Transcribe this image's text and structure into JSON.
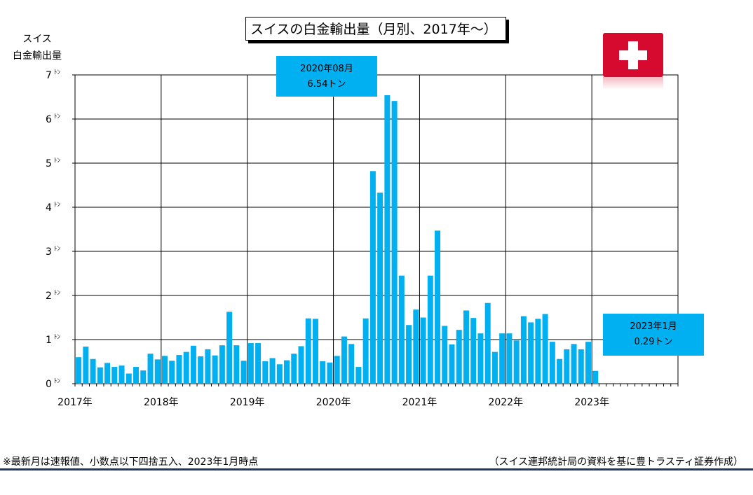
{
  "chart_data": {
    "type": "bar",
    "title": "スイスの白金輸出量（月別、2017年～）",
    "ylabel_line1": "スイス",
    "ylabel_line2": "白金輸出量",
    "ylim": [
      0,
      7
    ],
    "y_ticks": [
      "0",
      "1",
      "2",
      "3",
      "4",
      "5",
      "6",
      "7"
    ],
    "y_unit": "ﾄﾝ",
    "x_ticks": [
      "2017年",
      "2018年",
      "2019年",
      "2020年",
      "2021年",
      "2022年",
      "2023年"
    ],
    "grid": true,
    "bar_color": "#00b0f0",
    "x": [
      "2017-01",
      "2017-02",
      "2017-03",
      "2017-04",
      "2017-05",
      "2017-06",
      "2017-07",
      "2017-08",
      "2017-09",
      "2017-10",
      "2017-11",
      "2017-12",
      "2018-01",
      "2018-02",
      "2018-03",
      "2018-04",
      "2018-05",
      "2018-06",
      "2018-07",
      "2018-08",
      "2018-09",
      "2018-10",
      "2018-11",
      "2018-12",
      "2019-01",
      "2019-02",
      "2019-03",
      "2019-04",
      "2019-05",
      "2019-06",
      "2019-07",
      "2019-08",
      "2019-09",
      "2019-10",
      "2019-11",
      "2019-12",
      "2020-01",
      "2020-02",
      "2020-03",
      "2020-04",
      "2020-05",
      "2020-06",
      "2020-07",
      "2020-08",
      "2020-09",
      "2020-10",
      "2020-11",
      "2020-12",
      "2021-01",
      "2021-02",
      "2021-03",
      "2021-04",
      "2021-05",
      "2021-06",
      "2021-07",
      "2021-08",
      "2021-09",
      "2021-10",
      "2021-11",
      "2021-12",
      "2022-01",
      "2022-02",
      "2022-03",
      "2022-04",
      "2022-05",
      "2022-06",
      "2022-07",
      "2022-08",
      "2022-09",
      "2022-10",
      "2022-11",
      "2022-12",
      "2023-01"
    ],
    "values": [
      0.6,
      0.84,
      0.56,
      0.37,
      0.47,
      0.38,
      0.41,
      0.23,
      0.38,
      0.3,
      0.68,
      0.55,
      0.63,
      0.52,
      0.65,
      0.72,
      0.86,
      0.62,
      0.78,
      0.64,
      0.87,
      1.63,
      0.87,
      0.52,
      0.92,
      0.92,
      0.51,
      0.58,
      0.44,
      0.53,
      0.68,
      0.85,
      1.48,
      1.47,
      0.51,
      0.48,
      0.63,
      1.07,
      0.9,
      0.38,
      1.48,
      4.82,
      4.33,
      6.54,
      6.41,
      2.45,
      1.33,
      1.68,
      1.5,
      2.45,
      3.47,
      1.31,
      0.89,
      1.22,
      1.66,
      1.49,
      1.14,
      1.83,
      0.72,
      1.14,
      1.14,
      0.98,
      1.53,
      1.39,
      1.47,
      1.58,
      0.95,
      0.56,
      0.78,
      0.9,
      0.78,
      0.95,
      0.29
    ],
    "months_total": 84,
    "annotations": [
      {
        "line1": "2020年08月",
        "line2": "6.54トン"
      },
      {
        "line1": "2023年1月",
        "line2": "0.29トン"
      }
    ]
  },
  "footnote": "※最新月は速報値、小数点以下四捨五入、2023年1月時点",
  "source": "（スイス連邦統計局の資料を基に豊トラスティ証券作成）",
  "flag_icon": "swiss-flag-icon"
}
